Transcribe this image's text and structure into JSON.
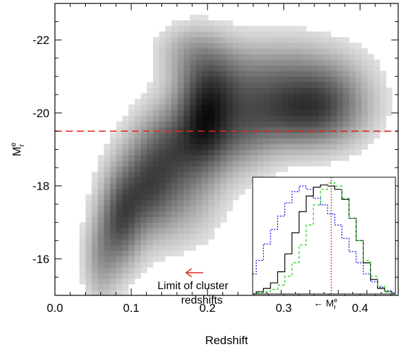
{
  "chart_data": [
    {
      "type": "heatmap",
      "title": "",
      "xlabel": "Redshift",
      "ylabel": {
        "main": "M",
        "sup": "e",
        "sub": "r"
      },
      "xlim": [
        0.0,
        0.45
      ],
      "ylim": [
        -15.0,
        -23.0
      ],
      "x_ticks": [
        0.0,
        0.1,
        0.2,
        0.3,
        0.4
      ],
      "x_tick_labels": [
        "0.0",
        "0.1",
        "0.2",
        "0.3",
        "0.4"
      ],
      "y_ticks": [
        -22,
        -20,
        -18,
        -16
      ],
      "y_tick_labels": [
        "-22",
        "-20",
        "-18",
        "-16"
      ],
      "colormap": "white-to-black grayscale (density)",
      "density_components": [
        {
          "x": 0.085,
          "y": -17.0,
          "sx": 0.018,
          "sy": 0.85,
          "w": 0.8
        },
        {
          "x": 0.115,
          "y": -17.9,
          "sx": 0.025,
          "sy": 0.85,
          "w": 0.75
        },
        {
          "x": 0.15,
          "y": -19.0,
          "sx": 0.028,
          "sy": 0.8,
          "w": 0.75
        },
        {
          "x": 0.195,
          "y": -19.6,
          "sx": 0.024,
          "sy": 0.9,
          "w": 1.0
        },
        {
          "x": 0.205,
          "y": -20.8,
          "sx": 0.03,
          "sy": 0.7,
          "w": 0.55
        },
        {
          "x": 0.27,
          "y": -20.4,
          "sx": 0.045,
          "sy": 0.75,
          "w": 0.55
        },
        {
          "x": 0.35,
          "y": -20.3,
          "sx": 0.04,
          "sy": 0.7,
          "w": 0.8
        },
        {
          "x": 0.31,
          "y": -19.8,
          "sx": 0.05,
          "sy": 0.6,
          "w": 0.4
        },
        {
          "x": 0.16,
          "y": -17.6,
          "sx": 0.035,
          "sy": 0.8,
          "w": 0.35
        },
        {
          "x": 0.24,
          "y": -19.3,
          "sx": 0.03,
          "sy": 0.7,
          "w": 0.4
        },
        {
          "x": 0.3,
          "y": -21.3,
          "sx": 0.06,
          "sy": 0.6,
          "w": 0.25
        },
        {
          "x": 0.18,
          "y": -21.7,
          "sx": 0.03,
          "sy": 0.5,
          "w": 0.3
        },
        {
          "x": 0.06,
          "y": -16.0,
          "sx": 0.015,
          "sy": 0.8,
          "w": 0.4
        }
      ],
      "reference_line": {
        "y": -19.5,
        "color": "#e0281e",
        "style": "dashed"
      },
      "annotation": {
        "lines": [
          "Limit of cluster",
          "redshifts"
        ],
        "arrow": "left",
        "arrow_color": "#e0281e"
      }
    },
    {
      "type": "line",
      "title": "",
      "xlabel": {
        "prefix": "←",
        "main": "M",
        "sup": "e",
        "sub": "r"
      },
      "marker_line": {
        "x": 0.55,
        "color": "#e0281e",
        "style": "dotted"
      },
      "x": [
        0.0,
        0.05,
        0.1,
        0.15,
        0.2,
        0.25,
        0.3,
        0.35,
        0.4,
        0.45,
        0.5,
        0.55,
        0.6,
        0.65,
        0.7,
        0.75,
        0.8,
        0.85,
        0.9,
        0.95,
        1.0
      ],
      "series": [
        {
          "color": "#0000dd",
          "style": "dotted",
          "values": [
            0.18,
            0.3,
            0.45,
            0.58,
            0.7,
            0.82,
            0.92,
            0.97,
            0.94,
            0.86,
            0.8,
            0.72,
            0.62,
            0.5,
            0.38,
            0.28,
            0.18,
            0.11,
            0.06,
            0.03,
            0.01
          ]
        },
        {
          "color": "#000000",
          "style": "solid",
          "values": [
            0.0,
            0.02,
            0.05,
            0.1,
            0.2,
            0.36,
            0.55,
            0.74,
            0.88,
            0.96,
            0.98,
            0.97,
            0.94,
            0.85,
            0.68,
            0.48,
            0.28,
            0.13,
            0.05,
            0.02,
            0.0
          ]
        },
        {
          "color": "#22cc22",
          "style": "dashed",
          "values": [
            0.0,
            0.01,
            0.02,
            0.04,
            0.08,
            0.16,
            0.28,
            0.44,
            0.62,
            0.8,
            0.94,
            1.0,
            0.97,
            0.86,
            0.68,
            0.48,
            0.3,
            0.16,
            0.07,
            0.02,
            0.0
          ]
        }
      ]
    }
  ]
}
